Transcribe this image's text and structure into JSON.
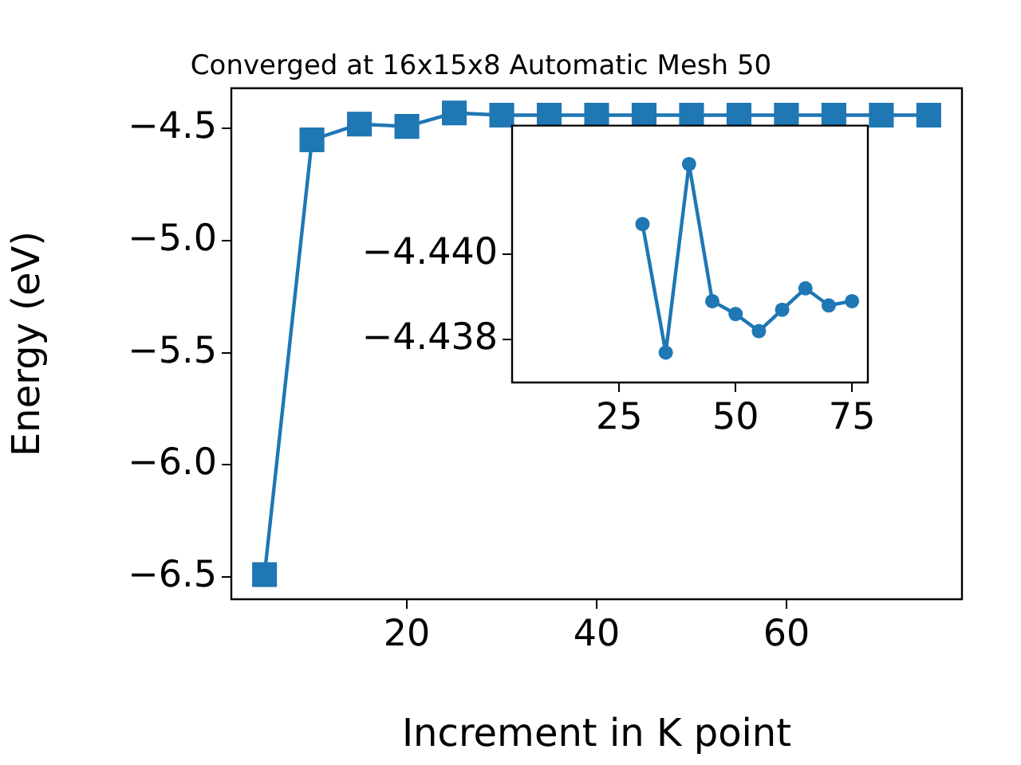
{
  "chart_data": [
    {
      "type": "line",
      "title": "Converged at 16x15x8 Automatic Mesh 50",
      "xlabel": "Increment in K point",
      "ylabel": "Energy (eV)",
      "x": [
        5,
        10,
        15,
        20,
        25,
        30,
        35,
        40,
        45,
        50,
        55,
        60,
        65,
        70,
        75
      ],
      "series": [
        {
          "color": "#1f77b4",
          "values": [
            -6.49,
            -4.55,
            -4.48,
            -4.49,
            -4.43,
            -4.44,
            -4.44,
            -4.44,
            -4.44,
            -4.44,
            -4.44,
            -4.44,
            -4.44,
            -4.44,
            -4.44
          ]
        }
      ],
      "xlim": [
        1.5,
        78.5
      ],
      "xticks": [
        20,
        40,
        60
      ],
      "ylim": [
        -6.6,
        -4.32
      ],
      "yticks": [
        {
          "value": -6.5,
          "label": "−6.5"
        },
        {
          "value": -6.0,
          "label": "−6.0"
        },
        {
          "value": -5.5,
          "label": "−5.5"
        },
        {
          "value": -5.0,
          "label": "−5.0"
        },
        {
          "value": -4.5,
          "label": "−4.5"
        }
      ],
      "grid": false,
      "legend": false,
      "marker": "square",
      "line_style": "solid"
    },
    {
      "type": "line",
      "x": [
        30,
        35,
        40,
        45,
        50,
        55,
        60,
        65,
        70,
        75
      ],
      "series": [
        {
          "color": "#1f77b4",
          "values": [
            -4.4407,
            -4.4377,
            -4.4421,
            -4.4389,
            -4.4386,
            -4.4382,
            -4.4387,
            -4.4392,
            -4.4388,
            -4.4389
          ]
        }
      ],
      "xlim": [
        2.0,
        78.4
      ],
      "xticks": [
        25,
        50,
        75
      ],
      "ylim": [
        -4.437,
        -4.443
      ],
      "yticks": [
        {
          "value": -4.44,
          "label": "−4.440"
        },
        {
          "value": -4.438,
          "label": "−4.438"
        }
      ],
      "grid": false,
      "legend": false,
      "marker": "circle",
      "line_style": "solid"
    }
  ]
}
